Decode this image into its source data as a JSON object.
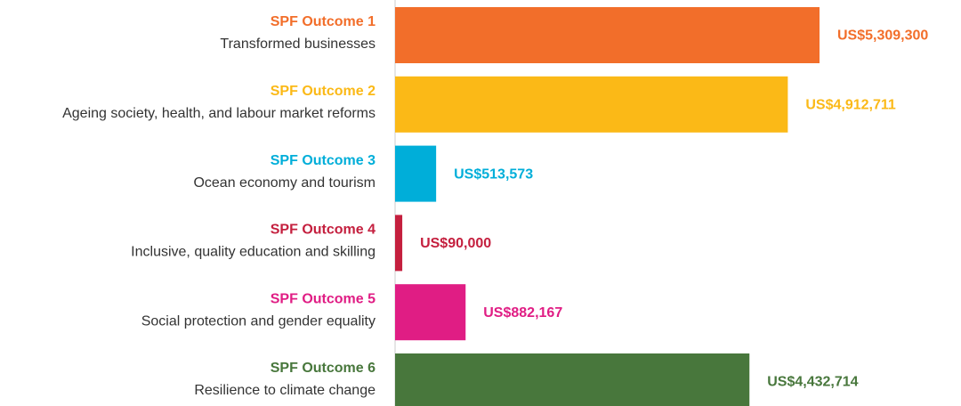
{
  "chart_data": {
    "type": "bar",
    "orientation": "horizontal",
    "categories": [
      "SPF Outcome 1",
      "SPF Outcome 2",
      "SPF Outcome 3",
      "SPF Outcome 4",
      "SPF Outcome 5",
      "SPF Outcome 6"
    ],
    "descriptions": [
      "Transformed businesses",
      "Ageing society, health, and labour market reforms",
      "Ocean economy and tourism",
      "Inclusive, quality education and skilling",
      "Social protection and gender equality",
      "Resilience to climate change"
    ],
    "values": [
      5309300,
      4912711,
      513573,
      90000,
      882167,
      4432714
    ],
    "value_labels": [
      "US$5,309,300",
      "US$4,912,711",
      "US$513,573",
      "US$90,000",
      "US$882,167",
      "US$4,432,714"
    ],
    "colors": [
      "#f26e2a",
      "#fbb917",
      "#00aed9",
      "#c41f3e",
      "#e01d84",
      "#48773c"
    ]
  }
}
